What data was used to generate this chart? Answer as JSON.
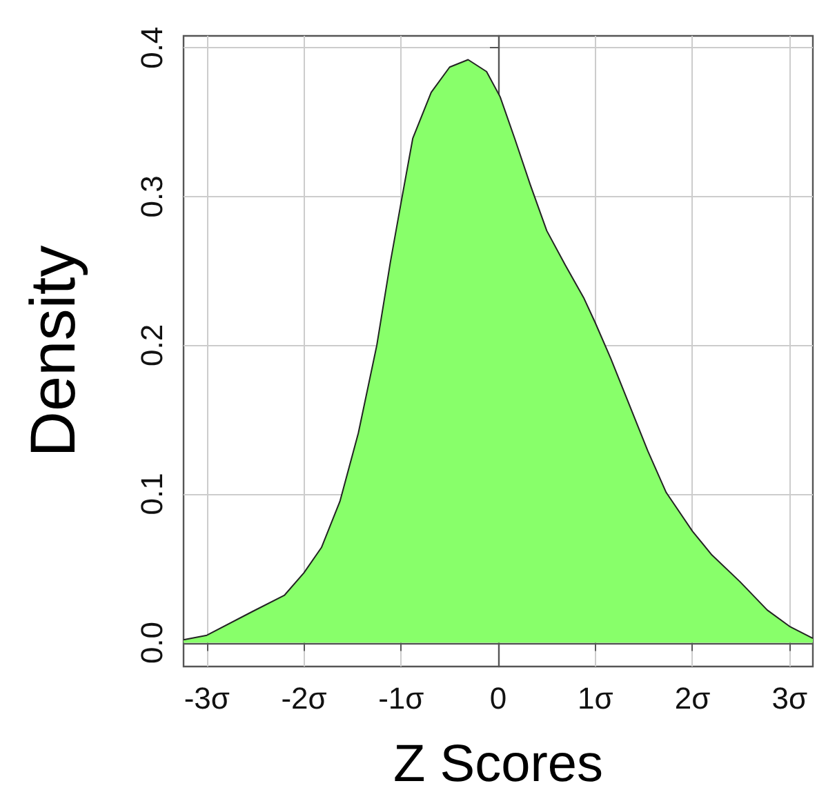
{
  "chart_data": {
    "type": "area",
    "xlabel": "Z Scores",
    "ylabel": "Density",
    "x": [
      -3.24,
      -3.0,
      -2.53,
      -2.2,
      -2.0,
      -1.82,
      -1.63,
      -1.44,
      -1.25,
      -1.11,
      -1.0,
      -0.88,
      -0.69,
      -0.5,
      -0.31,
      -0.12,
      0.02,
      0.17,
      0.33,
      0.5,
      0.69,
      0.88,
      1.0,
      1.16,
      1.35,
      1.54,
      1.73,
      2.0,
      2.2,
      2.49,
      2.77,
      3.0,
      3.24
    ],
    "series": [
      {
        "color": "#88ff6a",
        "values": [
          0.002,
          0.005,
          0.021,
          0.032,
          0.047,
          0.064,
          0.095,
          0.141,
          0.2,
          0.256,
          0.296,
          0.339,
          0.37,
          0.387,
          0.392,
          0.384,
          0.367,
          0.339,
          0.308,
          0.277,
          0.254,
          0.232,
          0.215,
          0.191,
          0.16,
          0.129,
          0.101,
          0.075,
          0.059,
          0.041,
          0.022,
          0.011,
          0.003
        ]
      }
    ],
    "xlim": [
      -3.24,
      3.24
    ],
    "ylim": [
      -0.016,
      0.408
    ],
    "xticks": [
      {
        "value": -3,
        "label": "-3σ"
      },
      {
        "value": -2,
        "label": "-2σ"
      },
      {
        "value": -1,
        "label": "-1σ"
      },
      {
        "value": 0,
        "label": "0"
      },
      {
        "value": 1,
        "label": "1σ"
      },
      {
        "value": 2,
        "label": "2σ"
      },
      {
        "value": 3,
        "label": "3σ"
      }
    ],
    "yticks": [
      {
        "value": 0,
        "label": "0.0"
      },
      {
        "value": 0.1,
        "label": "0.1"
      },
      {
        "value": 0.2,
        "label": "0.2"
      },
      {
        "value": 0.3,
        "label": "0.3"
      },
      {
        "value": 0.4,
        "label": "0.4"
      }
    ],
    "grid": true,
    "marker": "none",
    "line_style": "solid"
  }
}
